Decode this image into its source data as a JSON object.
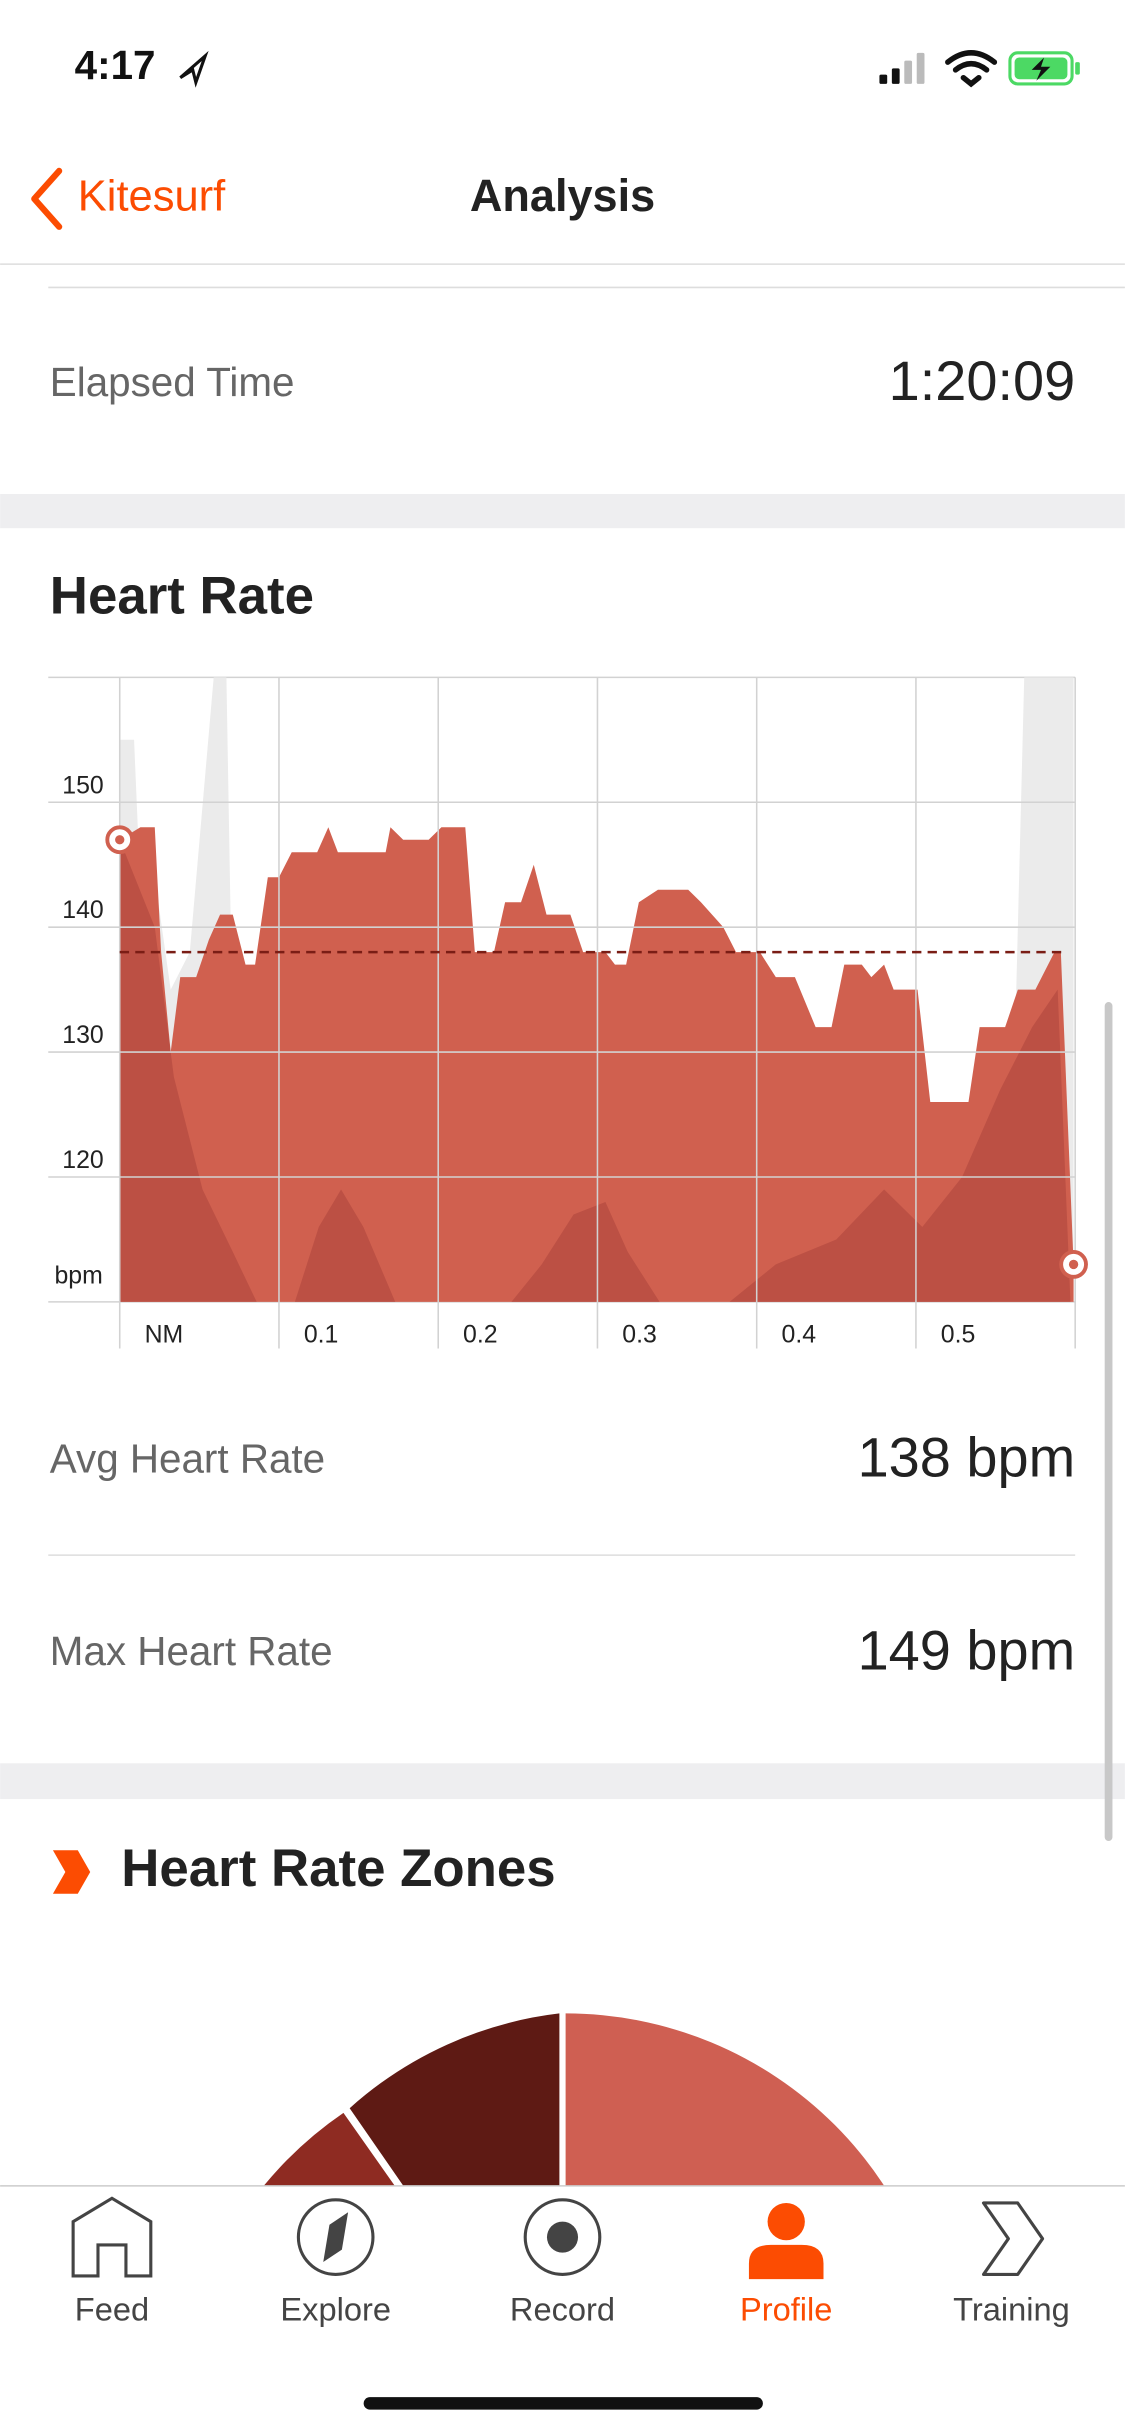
{
  "status_bar": {
    "time": "4:17"
  },
  "nav": {
    "back": "Kitesurf",
    "title": "Analysis"
  },
  "summary": {
    "label": "Elapsed Time",
    "value": "1:20:09"
  },
  "heart_rate": {
    "title": "Heart Rate",
    "stats": [
      {
        "label": "Avg Heart Rate",
        "value": "138 bpm"
      },
      {
        "label": "Max Heart Rate",
        "value": "149 bpm"
      }
    ]
  },
  "chart_data": {
    "type": "area",
    "ylabel": "bpm",
    "xlim": [
      0,
      0.6
    ],
    "ylim": [
      110,
      160
    ],
    "xticks": [
      {
        "value": 0,
        "label": "NM"
      },
      0.1,
      0.2,
      0.3,
      0.4,
      0.5
    ],
    "yticks": [
      120,
      130,
      140,
      150
    ],
    "grid": true,
    "average": 138,
    "series": [
      {
        "color": "#ebebeb",
        "x": [
          0,
          0.009,
          0.015,
          0.022,
          0.032,
          0.044,
          0.059,
          0.067,
          0.073,
          0.086,
          0.548,
          0.56,
          0.568,
          0.599
        ],
        "values": [
          155,
          155,
          137,
          144,
          135,
          138,
          160,
          160,
          116,
          110,
          110,
          120,
          160,
          160
        ]
      },
      {
        "color": "#d0604f",
        "x": [
          0,
          0.013,
          0.022,
          0.026,
          0.032,
          0.038,
          0.048,
          0.056,
          0.063,
          0.071,
          0.079,
          0.085,
          0.093,
          0.1,
          0.108,
          0.124,
          0.131,
          0.137,
          0.167,
          0.17,
          0.178,
          0.194,
          0.202,
          0.217,
          0.223,
          0.235,
          0.242,
          0.252,
          0.26,
          0.268,
          0.283,
          0.291,
          0.305,
          0.311,
          0.318,
          0.326,
          0.338,
          0.357,
          0.365,
          0.379,
          0.387,
          0.402,
          0.412,
          0.424,
          0.437,
          0.447,
          0.455,
          0.466,
          0.472,
          0.48,
          0.486,
          0.501,
          0.509,
          0.533,
          0.54,
          0.556,
          0.564,
          0.575,
          0.587,
          0.591,
          0.599
        ],
        "values": [
          147,
          148,
          148,
          138,
          130,
          136,
          136,
          139,
          141,
          141,
          137,
          137,
          144,
          144,
          146,
          146,
          148,
          146,
          146,
          148,
          147,
          147,
          148,
          148,
          138,
          138,
          142,
          142,
          145,
          141,
          141,
          138,
          138,
          137,
          137,
          142,
          143,
          143,
          142,
          140,
          138,
          138,
          136,
          136,
          132,
          132,
          137,
          137,
          136,
          137,
          135,
          135,
          126,
          126,
          132,
          132,
          135,
          135,
          138,
          138,
          113
        ]
      },
      {
        "color": "#a8403a",
        "x": [
          0,
          0.022,
          0.034,
          0.052,
          0.071,
          0.086,
          0.11,
          0.125,
          0.139,
          0.153,
          0.173,
          0.246,
          0.265,
          0.285,
          0.305,
          0.319,
          0.339,
          0.383,
          0.412,
          0.45,
          0.48,
          0.504,
          0.529,
          0.553,
          0.573,
          0.589,
          0.597
        ],
        "values": [
          147,
          140,
          128,
          119,
          114,
          110,
          110,
          116,
          119,
          116,
          110,
          110,
          113,
          117,
          118,
          114,
          110,
          110,
          113,
          115,
          119,
          116,
          120,
          127,
          132,
          135,
          110
        ]
      }
    ]
  },
  "zones": {
    "title": "Heart Rate Zones"
  },
  "tab_bar": {
    "tabs": [
      "Feed",
      "Explore",
      "Record",
      "Profile",
      "Training"
    ],
    "active": 3
  }
}
